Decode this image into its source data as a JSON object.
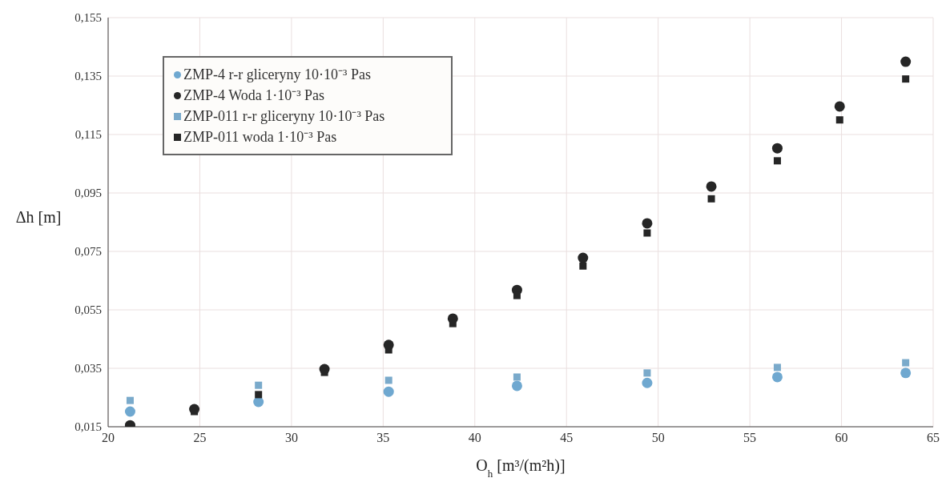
{
  "chart_data": {
    "type": "scatter",
    "xlabel": "O$_{h}$ [m³/(m²h)]",
    "ylabel": "Δh [m]",
    "x": [
      21.2,
      24.7,
      28.2,
      31.8,
      35.3,
      38.8,
      42.3,
      45.9,
      49.4,
      52.9,
      56.5,
      59.9,
      63.5
    ],
    "series": [
      {
        "name": "ZMP-4 r-r gliceryny 10·10⁻³ Pas",
        "color": "#6fa8d0",
        "marker": "circle",
        "values": [
          0.0202,
          null,
          0.0235,
          null,
          0.027,
          null,
          0.029,
          null,
          0.03,
          null,
          0.032,
          null,
          0.0334
        ]
      },
      {
        "name": "ZMP-4 Woda 1·10⁻³ Pas",
        "color": "#262626",
        "marker": "circle",
        "values": [
          0.0155,
          0.021,
          null,
          0.0347,
          0.043,
          0.052,
          0.0618,
          0.0728,
          0.0846,
          0.0972,
          0.1103,
          0.1246,
          0.1399
        ]
      },
      {
        "name": "ZMP-011 r-r gliceryny 10·10⁻³ Pas",
        "color": "#7aaacb",
        "marker": "square",
        "values": [
          0.024,
          null,
          0.0292,
          null,
          0.0309,
          null,
          0.032,
          null,
          0.0334,
          null,
          0.0353,
          null,
          0.0369
        ]
      },
      {
        "name": "ZMP-011 woda 1·10⁻³ Pas",
        "color": "#262626",
        "marker": "square",
        "values": [
          null,
          0.0202,
          0.026,
          0.0336,
          0.0413,
          0.0503,
          0.0599,
          0.07,
          0.0813,
          0.093,
          0.106,
          0.12,
          0.134
        ]
      }
    ],
    "xlim": [
      20,
      65
    ],
    "xticks": [
      20,
      25,
      30,
      35,
      40,
      45,
      50,
      55,
      60,
      65
    ],
    "ylim": [
      0.015,
      0.155
    ],
    "yticks": [
      {
        "value": 0.015,
        "label": "0,015"
      },
      {
        "value": 0.035,
        "label": "0,035"
      },
      {
        "value": 0.055,
        "label": "0,055"
      },
      {
        "value": 0.075,
        "label": "0,075"
      },
      {
        "value": 0.095,
        "label": "0,095"
      },
      {
        "value": 0.115,
        "label": "0,115"
      },
      {
        "value": 0.135,
        "label": "0,135"
      },
      {
        "value": 0.155,
        "label": "0,155"
      }
    ],
    "grid": true,
    "legend": "top left"
  }
}
